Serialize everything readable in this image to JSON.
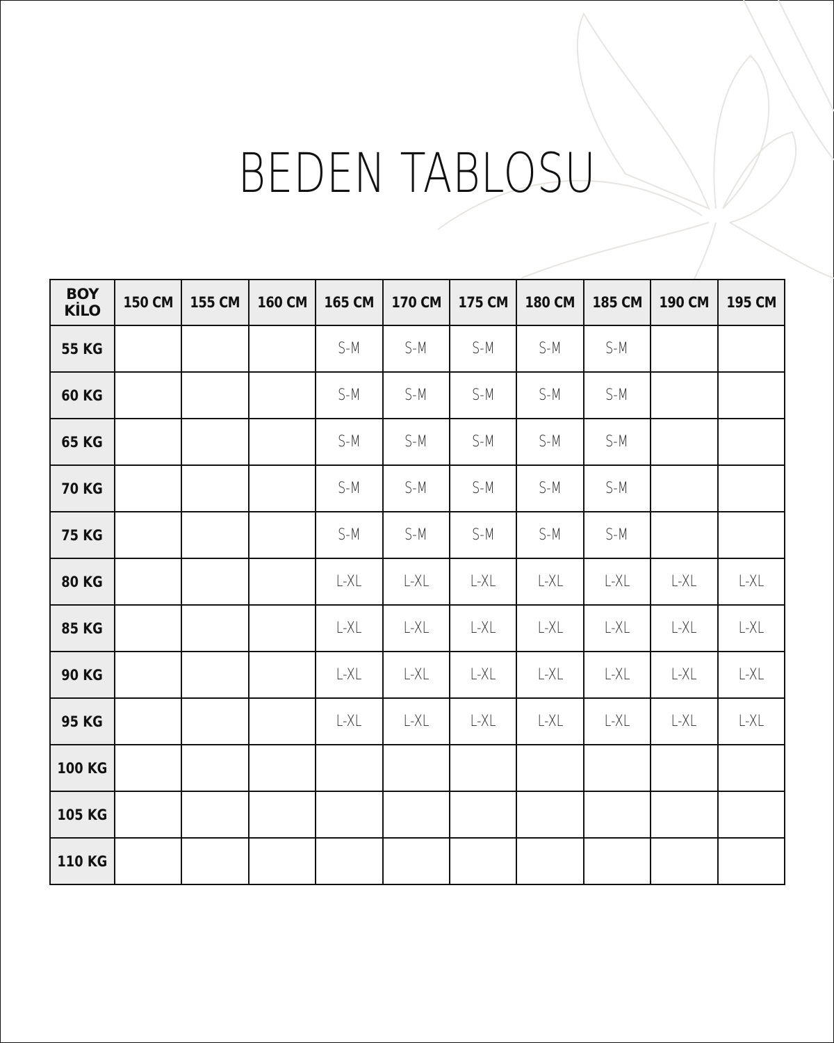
{
  "title": "BEDEN TABLOSU",
  "table": {
    "corner_top": "BOY",
    "corner_bottom": "KİLO",
    "columns": [
      "150 CM",
      "155 CM",
      "160 CM",
      "165 CM",
      "170 CM",
      "175 CM",
      "180 CM",
      "185 CM",
      "190 CM",
      "195 CM"
    ],
    "rows": [
      {
        "label": "55 KG",
        "cells": [
          "",
          "",
          "",
          "S-M",
          "S-M",
          "S-M",
          "S-M",
          "S-M",
          "",
          ""
        ]
      },
      {
        "label": "60 KG",
        "cells": [
          "",
          "",
          "",
          "S-M",
          "S-M",
          "S-M",
          "S-M",
          "S-M",
          "",
          ""
        ]
      },
      {
        "label": "65 KG",
        "cells": [
          "",
          "",
          "",
          "S-M",
          "S-M",
          "S-M",
          "S-M",
          "S-M",
          "",
          ""
        ]
      },
      {
        "label": "70 KG",
        "cells": [
          "",
          "",
          "",
          "S-M",
          "S-M",
          "S-M",
          "S-M",
          "S-M",
          "",
          ""
        ]
      },
      {
        "label": "75 KG",
        "cells": [
          "",
          "",
          "",
          "S-M",
          "S-M",
          "S-M",
          "S-M",
          "S-M",
          "",
          ""
        ]
      },
      {
        "label": "80 KG",
        "cells": [
          "",
          "",
          "",
          "L-XL",
          "L-XL",
          "L-XL",
          "L-XL",
          "L-XL",
          "L-XL",
          "L-XL"
        ]
      },
      {
        "label": "85 KG",
        "cells": [
          "",
          "",
          "",
          "L-XL",
          "L-XL",
          "L-XL",
          "L-XL",
          "L-XL",
          "L-XL",
          "L-XL"
        ]
      },
      {
        "label": "90 KG",
        "cells": [
          "",
          "",
          "",
          "L-XL",
          "L-XL",
          "L-XL",
          "L-XL",
          "L-XL",
          "L-XL",
          "L-XL"
        ]
      },
      {
        "label": "95 KG",
        "cells": [
          "",
          "",
          "",
          "L-XL",
          "L-XL",
          "L-XL",
          "L-XL",
          "L-XL",
          "L-XL",
          "L-XL"
        ]
      },
      {
        "label": "100 KG",
        "cells": [
          "",
          "",
          "",
          "",
          "",
          "",
          "",
          "",
          "",
          ""
        ]
      },
      {
        "label": "105 KG",
        "cells": [
          "",
          "",
          "",
          "",
          "",
          "",
          "",
          "",
          "",
          ""
        ]
      },
      {
        "label": "110 KG",
        "cells": [
          "",
          "",
          "",
          "",
          "",
          "",
          "",
          "",
          "",
          ""
        ]
      }
    ]
  },
  "colors": {
    "header_bg": "#ececec",
    "border": "#111111",
    "decoration": "#e8e4df"
  },
  "decoration_icon": "flower-line-art"
}
